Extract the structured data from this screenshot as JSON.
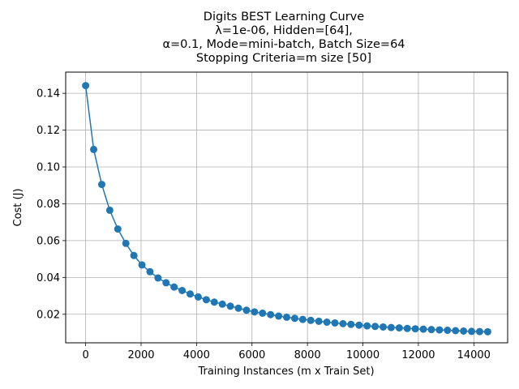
{
  "chart_data": {
    "type": "line",
    "title_lines": [
      "Digits BEST Learning Curve",
      "λ=1e-06,  Hidden=[64],",
      "α=0.1, Mode=mini-batch, Batch Size=64",
      "Stopping Criteria=m size [50]"
    ],
    "xlabel": "Training Instances (m x Train Set)",
    "ylabel": "Cost (J)",
    "xlim": [
      -720,
      15220
    ],
    "ylim": [
      0.0045,
      0.1515
    ],
    "xticks": [
      0,
      2000,
      4000,
      6000,
      8000,
      10000,
      12000,
      14000
    ],
    "yticks": [
      0.02,
      0.04,
      0.06,
      0.08,
      0.1,
      0.12,
      0.14
    ],
    "ytick_labels": [
      "0.02",
      "0.04",
      "0.06",
      "0.08",
      "0.10",
      "0.12",
      "0.14"
    ],
    "grid": true,
    "legend": "none",
    "color": "#1f77b4",
    "marker": "circle",
    "series": [
      {
        "x": [
          0,
          290,
          580,
          870,
          1160,
          1450,
          1740,
          2030,
          2320,
          2610,
          2900,
          3190,
          3480,
          3770,
          4060,
          4350,
          4640,
          4930,
          5220,
          5510,
          5800,
          6090,
          6380,
          6670,
          6960,
          7250,
          7540,
          7830,
          8120,
          8410,
          8700,
          8990,
          9280,
          9570,
          9860,
          10150,
          10440,
          10730,
          11020,
          11310,
          11600,
          11890,
          12180,
          12470,
          12760,
          13050,
          13340,
          13630,
          13920,
          14210,
          14500
        ],
        "values": [
          0.1442,
          0.1095,
          0.0905,
          0.0765,
          0.0663,
          0.0585,
          0.0519,
          0.0468,
          0.0431,
          0.0397,
          0.0371,
          0.0348,
          0.0329,
          0.031,
          0.0294,
          0.0279,
          0.0266,
          0.0255,
          0.0244,
          0.0233,
          0.0222,
          0.0213,
          0.0206,
          0.0198,
          0.019,
          0.0184,
          0.0178,
          0.0172,
          0.0167,
          0.0162,
          0.0157,
          0.0153,
          0.0149,
          0.0145,
          0.0141,
          0.0137,
          0.0134,
          0.0131,
          0.0128,
          0.0126,
          0.0123,
          0.0121,
          0.0119,
          0.0117,
          0.0115,
          0.0113,
          0.0111,
          0.0109,
          0.0107,
          0.0106,
          0.0105
        ]
      }
    ]
  }
}
